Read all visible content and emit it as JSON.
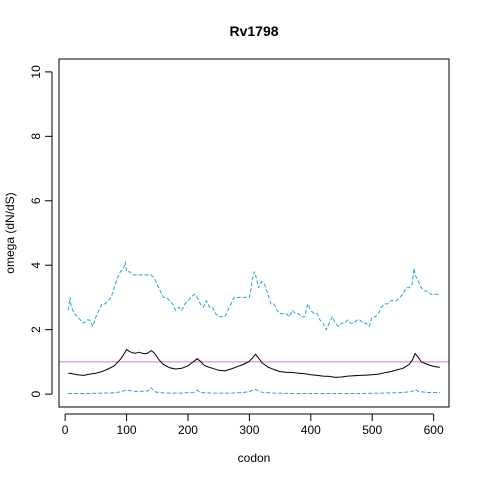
{
  "chart_data": {
    "type": "line",
    "title": "Rv1798",
    "xlabel": "codon",
    "ylabel": "omega (dN/dS)",
    "xlim": [
      -10,
      625
    ],
    "ylim": [
      -0.4,
      10.4
    ],
    "xticks": [
      0,
      100,
      200,
      300,
      400,
      500,
      600
    ],
    "yticks": [
      0,
      2,
      4,
      6,
      8,
      10
    ],
    "grid": false,
    "reference_line": {
      "y": 1,
      "color": "#c77cc7"
    },
    "series": [
      {
        "role": "upper",
        "color": "#29a3d9",
        "style": "dashed",
        "x": [
          5,
          8,
          10,
          15,
          20,
          25,
          30,
          35,
          40,
          45,
          50,
          55,
          60,
          65,
          70,
          75,
          80,
          85,
          90,
          95,
          98,
          100,
          105,
          110,
          115,
          120,
          125,
          130,
          135,
          140,
          145,
          150,
          155,
          160,
          165,
          170,
          175,
          180,
          185,
          190,
          195,
          200,
          205,
          210,
          215,
          220,
          225,
          230,
          235,
          240,
          245,
          250,
          255,
          260,
          265,
          270,
          275,
          280,
          285,
          290,
          295,
          300,
          303,
          305,
          308,
          310,
          315,
          320,
          325,
          330,
          335,
          340,
          345,
          350,
          355,
          360,
          365,
          370,
          375,
          380,
          385,
          390,
          395,
          400,
          405,
          410,
          415,
          420,
          425,
          430,
          435,
          440,
          445,
          450,
          455,
          460,
          465,
          470,
          475,
          480,
          485,
          490,
          495,
          500,
          505,
          510,
          515,
          520,
          525,
          530,
          535,
          540,
          545,
          550,
          555,
          560,
          565,
          568,
          570,
          575,
          580,
          585,
          590,
          595,
          600,
          605,
          610
        ],
        "y": [
          2.6,
          3.0,
          2.7,
          2.5,
          2.4,
          2.3,
          2.2,
          2.3,
          2.3,
          2.1,
          2.4,
          2.6,
          2.8,
          2.8,
          2.9,
          3.0,
          3.3,
          3.6,
          3.8,
          3.9,
          4.1,
          3.8,
          3.8,
          3.7,
          3.7,
          3.7,
          3.7,
          3.7,
          3.7,
          3.7,
          3.6,
          3.4,
          3.2,
          3.0,
          3.0,
          2.9,
          2.8,
          2.6,
          2.7,
          2.6,
          2.8,
          2.9,
          3.0,
          3.1,
          3.0,
          2.8,
          2.7,
          2.9,
          2.7,
          2.7,
          2.5,
          2.4,
          2.4,
          2.4,
          2.6,
          2.8,
          3.0,
          3.0,
          3.0,
          3.0,
          3.0,
          3.0,
          3.3,
          3.6,
          3.8,
          3.7,
          3.3,
          3.5,
          3.4,
          3.1,
          2.8,
          2.8,
          2.6,
          2.5,
          2.5,
          2.5,
          2.4,
          2.6,
          2.5,
          2.5,
          2.4,
          2.4,
          2.8,
          2.6,
          2.5,
          2.5,
          2.3,
          2.2,
          2.0,
          2.2,
          2.4,
          2.2,
          2.1,
          2.2,
          2.2,
          2.3,
          2.2,
          2.2,
          2.3,
          2.3,
          2.2,
          2.2,
          2.1,
          2.4,
          2.4,
          2.5,
          2.7,
          2.8,
          2.8,
          2.9,
          2.9,
          2.9,
          3.0,
          3.1,
          3.3,
          3.3,
          3.4,
          3.9,
          3.7,
          3.5,
          3.3,
          3.2,
          3.2,
          3.1,
          3.1,
          3.1,
          3.1
        ]
      },
      {
        "role": "mean",
        "color": "#000000",
        "style": "solid",
        "x": [
          5,
          10,
          20,
          30,
          40,
          50,
          60,
          70,
          80,
          90,
          95,
          100,
          105,
          110,
          115,
          120,
          125,
          130,
          135,
          140,
          145,
          150,
          155,
          160,
          170,
          180,
          190,
          200,
          205,
          210,
          215,
          220,
          225,
          230,
          240,
          250,
          260,
          270,
          280,
          290,
          300,
          305,
          310,
          315,
          320,
          330,
          340,
          350,
          360,
          370,
          380,
          390,
          400,
          410,
          420,
          430,
          440,
          450,
          460,
          470,
          480,
          490,
          500,
          510,
          520,
          530,
          540,
          550,
          555,
          560,
          565,
          570,
          575,
          580,
          590,
          600,
          610
        ],
        "y": [
          0.65,
          0.64,
          0.6,
          0.58,
          0.62,
          0.65,
          0.7,
          0.78,
          0.88,
          1.08,
          1.22,
          1.38,
          1.32,
          1.28,
          1.27,
          1.3,
          1.27,
          1.25,
          1.28,
          1.35,
          1.28,
          1.14,
          1.02,
          0.92,
          0.82,
          0.78,
          0.8,
          0.88,
          0.95,
          1.02,
          1.1,
          1.02,
          0.92,
          0.86,
          0.8,
          0.74,
          0.72,
          0.78,
          0.85,
          0.92,
          1.02,
          1.12,
          1.24,
          1.12,
          0.98,
          0.84,
          0.76,
          0.7,
          0.68,
          0.67,
          0.65,
          0.63,
          0.6,
          0.58,
          0.56,
          0.55,
          0.52,
          0.53,
          0.56,
          0.57,
          0.58,
          0.59,
          0.6,
          0.62,
          0.66,
          0.7,
          0.75,
          0.8,
          0.86,
          0.92,
          1.05,
          1.26,
          1.14,
          1.0,
          0.92,
          0.86,
          0.83
        ]
      },
      {
        "role": "lower",
        "color": "#29a3d9",
        "style": "dashed",
        "x": [
          5,
          20,
          40,
          60,
          80,
          90,
          95,
          100,
          110,
          120,
          135,
          140,
          145,
          150,
          170,
          190,
          210,
          215,
          220,
          240,
          270,
          290,
          300,
          305,
          310,
          320,
          340,
          370,
          400,
          430,
          450,
          480,
          520,
          550,
          565,
          570,
          575,
          590,
          610
        ],
        "y": [
          0.02,
          0.02,
          0.02,
          0.03,
          0.04,
          0.07,
          0.1,
          0.12,
          0.09,
          0.08,
          0.1,
          0.2,
          0.1,
          0.05,
          0.03,
          0.03,
          0.06,
          0.12,
          0.05,
          0.03,
          0.03,
          0.05,
          0.08,
          0.12,
          0.14,
          0.06,
          0.03,
          0.02,
          0.02,
          0.02,
          0.02,
          0.02,
          0.03,
          0.05,
          0.08,
          0.14,
          0.08,
          0.05,
          0.05
        ]
      }
    ]
  }
}
